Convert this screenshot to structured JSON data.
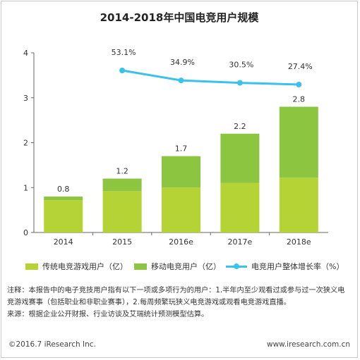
{
  "title": "2014-2018年中国电竞用户规模",
  "chart_data": {
    "type": "bar",
    "stacked": true,
    "categories": [
      "2014",
      "2015",
      "2016e",
      "2017e",
      "2018e"
    ],
    "series": [
      {
        "name": "传统电竞游戏用户（亿）",
        "values": [
          0.72,
          0.92,
          1.0,
          1.1,
          1.22
        ],
        "color": "#b5d334"
      },
      {
        "name": "移动电竞用户（亿）",
        "values": [
          0.08,
          0.28,
          0.7,
          1.1,
          1.58
        ],
        "color": "#8cc53f"
      }
    ],
    "totals": [
      "0.8",
      "1.2",
      "1.7",
      "2.2",
      "2.8"
    ],
    "line_series": {
      "name": "电竞用户整体增长率（%）",
      "color": "#3ac1ec",
      "x": [
        "2015",
        "2016e",
        "2017e",
        "2018e"
      ],
      "values": [
        53.1,
        34.9,
        30.5,
        27.4
      ],
      "labels": [
        "53.1%",
        "34.9%",
        "30.5%",
        "27.4%"
      ]
    },
    "yticks": [
      "0",
      "1",
      "2",
      "3",
      "4"
    ],
    "ylim": [
      0,
      4
    ],
    "grid": false,
    "legend_position": "bottom"
  },
  "legend": [
    "传统电竞游戏用户（亿）",
    "移动电竞用户（亿）",
    "电竞用户整体增长率（%）"
  ],
  "notes": [
    "注释：本报告中的电子竞技用户指有以下一项或多项行为的用户：1.半年内至少观看过或参与过一次狭义电竞游戏赛事（包括职业和非职业赛事），2.每周频繁玩狭义电竞游戏或观看电竞游戏直播。",
    "来源：根据企业公开财报、行业访谈及艾瑞统计预测模型估算。"
  ],
  "footer": {
    "copyright": "©2016.7 iResearch Inc.",
    "website": "www.iresearch.com.cn"
  }
}
